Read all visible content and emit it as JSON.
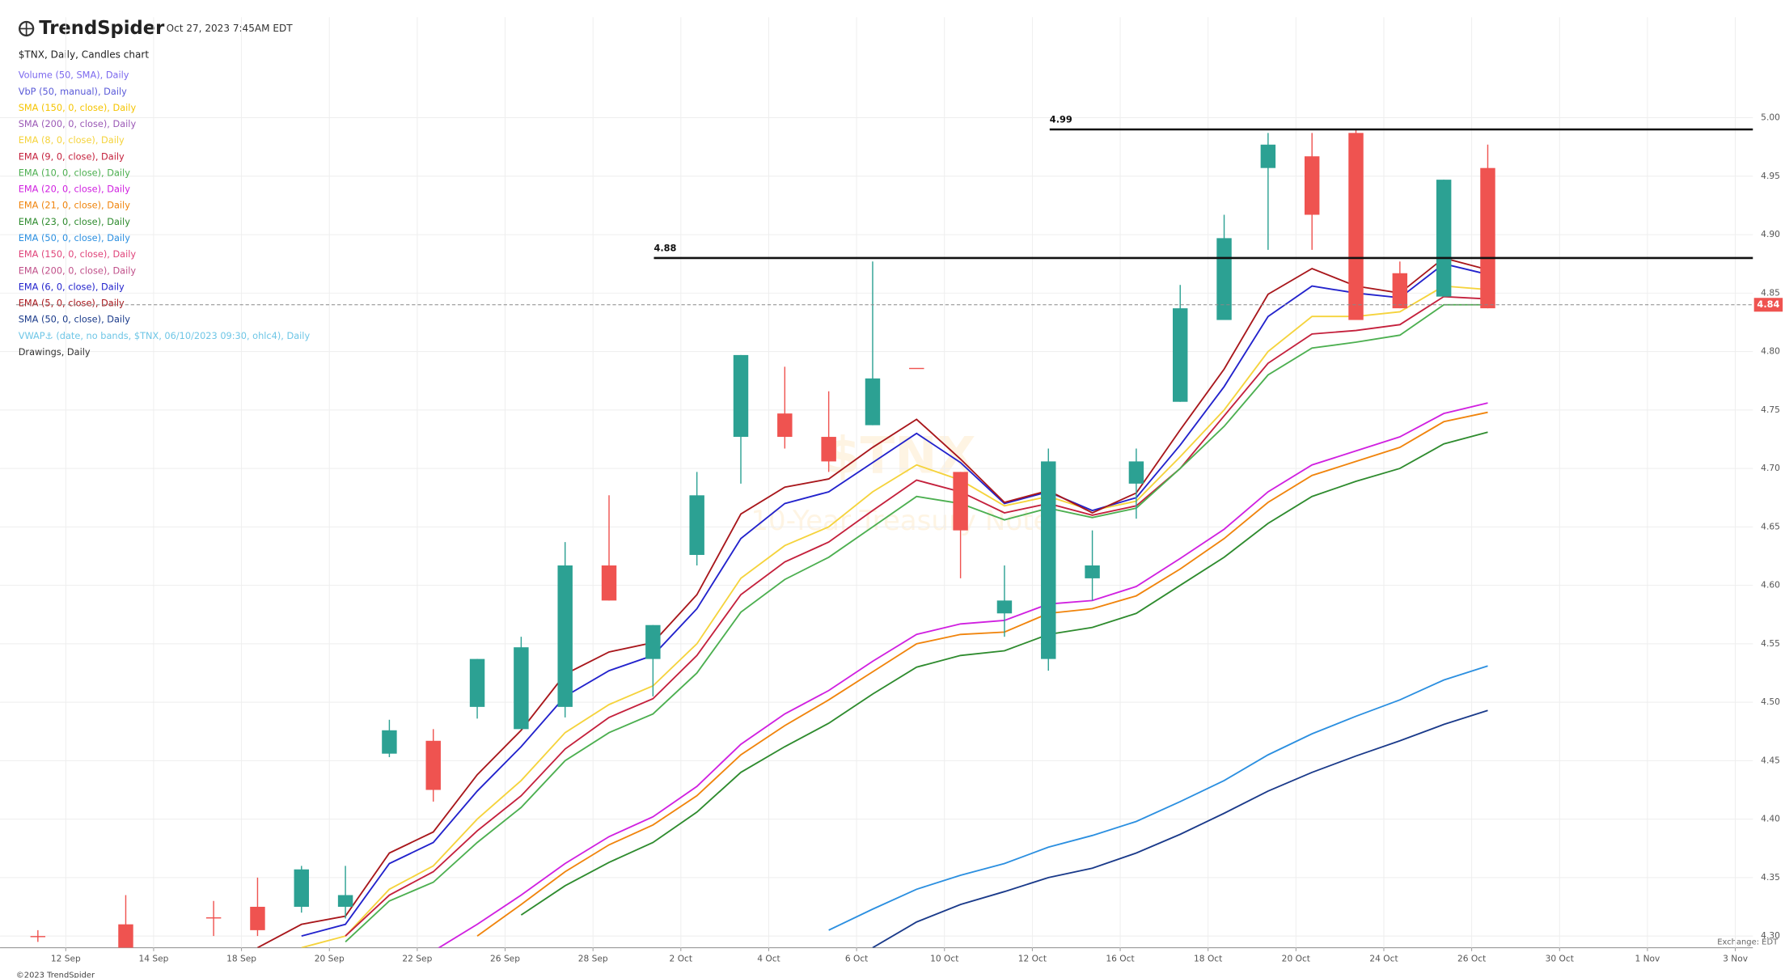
{
  "header": {
    "brand": "TrendSpider",
    "timestamp": "Oct 27, 2023 7:45AM EDT"
  },
  "footer": {
    "copyright": "©2023 TrendSpider",
    "exchange": "Exchange: EDT"
  },
  "chart_data": {
    "type": "candlestick",
    "title": "$TNX, Daily, Candles chart",
    "watermark": [
      "$TNX",
      "10-Year Treasury Note"
    ],
    "categories": [
      null,
      "12 Sep",
      null,
      "14 Sep",
      null,
      "18 Sep",
      null,
      "20 Sep",
      null,
      "22 Sep",
      null,
      "26 Sep",
      null,
      "28 Sep",
      null,
      "2 Oct",
      null,
      "4 Oct",
      null,
      "6 Oct",
      null,
      "10 Oct",
      null,
      "12 Oct",
      null,
      "16 Oct",
      null,
      "18 Oct",
      null,
      "20 Oct",
      null,
      "24 Oct",
      null,
      "26 Oct",
      null,
      "30 Oct",
      null,
      "1 Nov",
      null,
      "3 Nov"
    ],
    "open": [
      4.3,
      null,
      4.31,
      null,
      4.316,
      4.325,
      4.325,
      4.325,
      4.456,
      4.467,
      4.496,
      4.477,
      4.496,
      4.617,
      4.537,
      4.626,
      4.727,
      4.747,
      4.727,
      4.737,
      4.786,
      4.697,
      4.576,
      4.537,
      4.606,
      4.687,
      4.757,
      4.827,
      4.957,
      4.967,
      4.987,
      4.867,
      4.847,
      4.957,
      null,
      null,
      null,
      null,
      null,
      null
    ],
    "high": [
      4.305,
      null,
      4.335,
      null,
      4.33,
      4.35,
      4.36,
      4.36,
      4.485,
      4.477,
      4.537,
      4.556,
      4.637,
      4.677,
      4.566,
      4.697,
      4.797,
      4.787,
      4.766,
      4.877,
      4.786,
      4.697,
      4.617,
      4.717,
      4.647,
      4.717,
      4.857,
      4.917,
      4.987,
      4.987,
      4.99,
      4.877,
      4.947,
      4.977,
      null,
      null,
      null,
      null,
      null,
      null
    ],
    "low": [
      4.295,
      null,
      4.28,
      null,
      4.3,
      4.3,
      4.32,
      4.315,
      4.453,
      4.415,
      4.486,
      4.477,
      4.487,
      4.587,
      4.505,
      4.617,
      4.687,
      4.717,
      4.697,
      4.737,
      4.786,
      4.606,
      4.556,
      4.527,
      4.587,
      4.657,
      4.757,
      4.827,
      4.887,
      4.887,
      4.827,
      4.837,
      4.847,
      4.837,
      null,
      null,
      null,
      null,
      null,
      null
    ],
    "close": [
      4.3,
      null,
      4.29,
      null,
      4.315,
      4.305,
      4.357,
      4.335,
      4.476,
      4.425,
      4.537,
      4.547,
      4.617,
      4.587,
      4.566,
      4.677,
      4.797,
      4.727,
      4.706,
      4.777,
      4.786,
      4.647,
      4.587,
      4.706,
      4.617,
      4.706,
      4.837,
      4.897,
      4.977,
      4.917,
      4.827,
      4.837,
      4.947,
      4.837,
      null,
      null,
      null,
      null,
      null,
      null
    ],
    "up_color": "#2ca193",
    "down_color": "#ef5350",
    "series": [
      {
        "name": "Volume (50, SMA), Daily",
        "color": "#7b68ee"
      },
      {
        "name": "VbP (50, manual), Daily",
        "color": "#5a5ad8"
      },
      {
        "name": "SMA (150, 0, close), Daily",
        "color": "#f5c400"
      },
      {
        "name": "SMA (200, 0, close), Daily",
        "color": "#9b59b6"
      },
      {
        "name": "EMA (8, 0, close), Daily",
        "color": "#f5d33c",
        "values": [
          null,
          null,
          null,
          null,
          null,
          null,
          4.29,
          4.3,
          4.34,
          4.36,
          4.4,
          4.433,
          4.474,
          4.498,
          4.514,
          4.55,
          4.606,
          4.634,
          4.65,
          4.68,
          4.703,
          4.69,
          4.668,
          4.676,
          4.664,
          4.672,
          4.71,
          4.75,
          4.8,
          4.83,
          4.83,
          4.834,
          4.856,
          4.853,
          null,
          null,
          null,
          null,
          null,
          null
        ]
      },
      {
        "name": "EMA (9, 0, close), Daily",
        "color": "#c4203c",
        "values": [
          null,
          null,
          null,
          null,
          null,
          null,
          null,
          4.3,
          4.335,
          4.355,
          4.39,
          4.42,
          4.46,
          4.487,
          4.503,
          4.54,
          4.592,
          4.62,
          4.637,
          4.664,
          4.69,
          4.68,
          4.662,
          4.67,
          4.66,
          4.668,
          4.7,
          4.745,
          4.79,
          4.815,
          4.818,
          4.823,
          4.847,
          4.845,
          null,
          null,
          null,
          null,
          null,
          null
        ]
      },
      {
        "name": "EMA (10, 0, close), Daily",
        "color": "#4caf50",
        "values": [
          null,
          null,
          null,
          null,
          null,
          null,
          null,
          4.295,
          4.33,
          4.346,
          4.38,
          4.41,
          4.45,
          4.474,
          4.49,
          4.525,
          4.577,
          4.605,
          4.624,
          4.65,
          4.676,
          4.67,
          4.656,
          4.666,
          4.658,
          4.666,
          4.7,
          4.736,
          4.78,
          4.803,
          4.808,
          4.814,
          4.84,
          4.84,
          null,
          null,
          null,
          null,
          null,
          null
        ]
      },
      {
        "name": "EMA (20, 0, close), Daily",
        "color": "#d020e0",
        "values": [
          null,
          null,
          null,
          null,
          null,
          null,
          null,
          null,
          null,
          4.287,
          4.31,
          4.335,
          4.362,
          4.385,
          4.402,
          4.428,
          4.464,
          4.49,
          4.51,
          4.535,
          4.558,
          4.567,
          4.57,
          4.584,
          4.587,
          4.599,
          4.623,
          4.648,
          4.68,
          4.703,
          4.715,
          4.727,
          4.747,
          4.756,
          null,
          null,
          null,
          null,
          null,
          null
        ]
      },
      {
        "name": "EMA (21, 0, close), Daily",
        "color": "#f0840c",
        "values": [
          null,
          null,
          null,
          null,
          null,
          null,
          null,
          null,
          null,
          null,
          4.3,
          4.327,
          4.355,
          4.378,
          4.395,
          4.42,
          4.455,
          4.48,
          4.502,
          4.526,
          4.55,
          4.558,
          4.56,
          4.576,
          4.58,
          4.591,
          4.614,
          4.64,
          4.671,
          4.694,
          4.706,
          4.718,
          4.74,
          4.748,
          null,
          null,
          null,
          null,
          null,
          null
        ]
      },
      {
        "name": "EMA (23, 0, close), Daily",
        "color": "#2e8b2e",
        "values": [
          null,
          null,
          null,
          null,
          null,
          null,
          null,
          null,
          null,
          null,
          null,
          4.318,
          4.343,
          4.363,
          4.38,
          4.406,
          4.44,
          4.462,
          4.482,
          4.507,
          4.53,
          4.54,
          4.544,
          4.558,
          4.564,
          4.576,
          4.6,
          4.624,
          4.653,
          4.676,
          4.689,
          4.7,
          4.721,
          4.731,
          null,
          null,
          null,
          null,
          null,
          null
        ]
      },
      {
        "name": "EMA (50, 0, close), Daily",
        "color": "#2b8fe0",
        "values": [
          null,
          null,
          null,
          null,
          null,
          null,
          null,
          null,
          null,
          null,
          null,
          null,
          null,
          null,
          null,
          null,
          null,
          null,
          4.305,
          4.323,
          4.34,
          4.352,
          4.362,
          4.376,
          4.386,
          4.398,
          4.415,
          4.433,
          4.455,
          4.473,
          4.488,
          4.502,
          4.519,
          4.531,
          null,
          null,
          null,
          null,
          null,
          null
        ]
      },
      {
        "name": "EMA (150, 0, close), Daily",
        "color": "#e0447a"
      },
      {
        "name": "EMA (200, 0, close), Daily",
        "color": "#c0508a"
      },
      {
        "name": "EMA (6, 0, close), Daily",
        "color": "#2222cc",
        "values": [
          null,
          null,
          null,
          null,
          null,
          null,
          4.3,
          4.31,
          4.362,
          4.38,
          4.424,
          4.462,
          4.505,
          4.527,
          4.54,
          4.58,
          4.64,
          4.67,
          4.68,
          4.705,
          4.73,
          4.705,
          4.67,
          4.68,
          4.664,
          4.675,
          4.72,
          4.77,
          4.83,
          4.856,
          4.85,
          4.846,
          4.875,
          4.866,
          null,
          null,
          null,
          null,
          null,
          null
        ]
      },
      {
        "name": "EMA (5, 0, close), Daily",
        "color": "#a8161b",
        "values": [
          null,
          null,
          null,
          null,
          null,
          4.29,
          4.31,
          4.317,
          4.371,
          4.389,
          4.438,
          4.476,
          4.524,
          4.543,
          4.551,
          4.592,
          4.661,
          4.684,
          4.691,
          4.718,
          4.742,
          4.708,
          4.671,
          4.681,
          4.662,
          4.679,
          4.733,
          4.785,
          4.849,
          4.871,
          4.856,
          4.85,
          4.88,
          4.87,
          null,
          null,
          null,
          null,
          null,
          null
        ]
      },
      {
        "name": "SMA (50, 0, close), Daily",
        "color": "#1a3a8a",
        "values": [
          null,
          null,
          null,
          null,
          null,
          null,
          null,
          null,
          null,
          null,
          null,
          null,
          null,
          null,
          null,
          null,
          null,
          null,
          null,
          4.29,
          4.312,
          4.327,
          4.338,
          4.35,
          4.358,
          4.371,
          4.387,
          4.405,
          4.424,
          4.44,
          4.454,
          4.467,
          4.481,
          4.493,
          null,
          null,
          null,
          null,
          null,
          null
        ]
      },
      {
        "name": "VWAP⚓ (date, no bands, $TNX, 06/10/2023 09:30, ohlc4), Daily",
        "color": "#6ec6e6"
      },
      {
        "name": "Drawings, Daily",
        "color": "#333333"
      }
    ],
    "levels": [
      4.99,
      4.88
    ],
    "last_price": 4.84,
    "ylim": [
      4.29,
      5.086
    ],
    "yticks": [
      {
        "value": 4.3,
        "label": "4.30"
      },
      4.35,
      {
        "value": 4.4,
        "label": "4.40"
      },
      4.45,
      {
        "value": 4.5,
        "label": "4.50"
      },
      4.55,
      {
        "value": 4.6,
        "label": "4.60"
      },
      4.65,
      {
        "value": 4.7,
        "label": "4.70"
      },
      4.75,
      {
        "value": 4.8,
        "label": "4.80"
      },
      4.85,
      {
        "value": 4.9,
        "label": "4.90"
      },
      4.95,
      {
        "value": 5.0,
        "label": "5.00"
      }
    ],
    "grid": true
  }
}
